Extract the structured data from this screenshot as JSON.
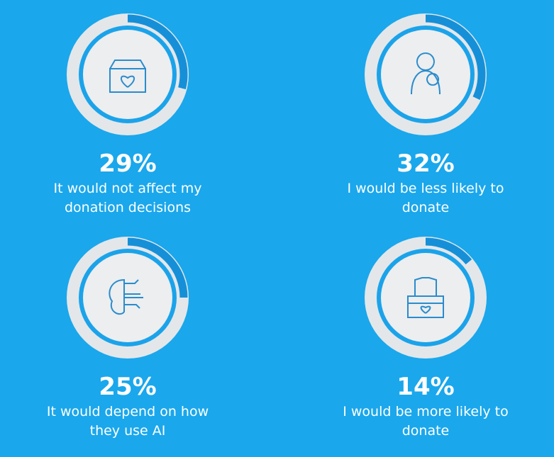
{
  "chart_data": [
    {
      "type": "ring",
      "categories": [
        "It would not affect my donation decisions"
      ],
      "values": [
        29
      ],
      "value_labels": [
        "29%"
      ],
      "color": "#1590d8"
    },
    {
      "type": "ring",
      "categories": [
        "I would be less likely to donate"
      ],
      "values": [
        32
      ],
      "value_labels": [
        "32%"
      ],
      "color": "#1590d8"
    },
    {
      "type": "ring",
      "categories": [
        "It would depend on how they use AI"
      ],
      "values": [
        25
      ],
      "value_labels": [
        "25%"
      ],
      "color": "#1590d8"
    },
    {
      "type": "ring",
      "categories": [
        "I would be more likely to donate"
      ],
      "values": [
        14
      ],
      "value_labels": [
        "14%"
      ],
      "color": "#1590d8"
    }
  ]
}
